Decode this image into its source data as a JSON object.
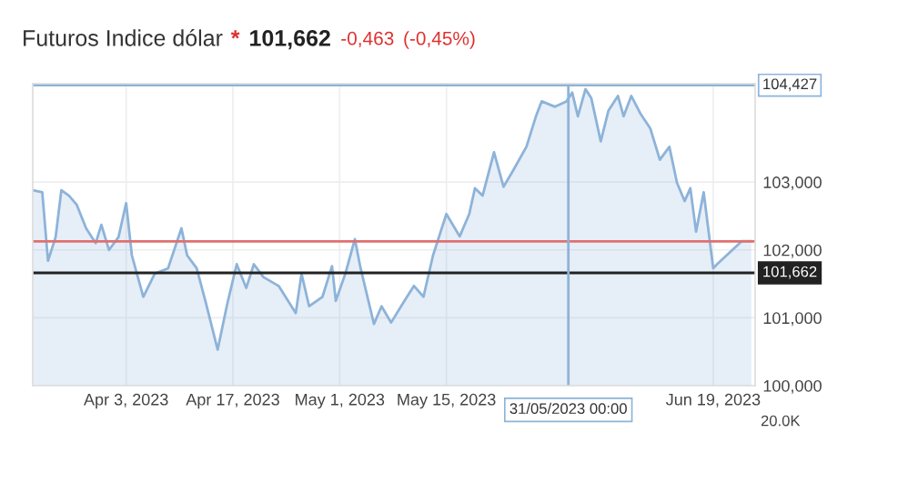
{
  "chart_data": {
    "type": "area",
    "title": "Futuros Indice dólar",
    "annotations": [
      "*",
      "101,662",
      "-0,463",
      "(-0,45%)",
      "20.0K"
    ],
    "x": [
      "2023-03-21T18:00",
      "2023-03-23T00:00",
      "2023-03-23T18:00",
      "2023-03-24T18:00",
      "2023-03-25T12:00",
      "2023-03-26T12:00",
      "2023-03-27T12:00",
      "2023-03-28T18:00",
      "2023-03-30T00:00",
      "2023-03-30T18:00",
      "2023-03-31T18:00",
      "2023-04-02T00:00",
      "2023-04-03T00:00",
      "2023-04-03T18:00",
      "2023-04-05T06:00",
      "2023-04-06T18:00",
      "2023-04-08T12:00",
      "2023-04-10T06:00",
      "2023-04-11T00:00",
      "2023-04-12T06:00",
      "2023-04-13T12:00",
      "2023-04-15T00:00",
      "2023-04-16T06:00",
      "2023-04-17T12:00",
      "2023-04-18T18:00",
      "2023-04-19T18:00",
      "2023-04-21T00:00",
      "2023-04-23T00:00",
      "2023-04-25T06:00",
      "2023-04-26T00:00",
      "2023-04-27T00:00",
      "2023-04-28T18:00",
      "2023-04-30T00:00",
      "2023-04-30T12:00",
      "2023-05-01T18:00",
      "2023-05-03T00:00",
      "2023-05-03T18:00",
      "2023-05-05T12:00",
      "2023-05-06T12:00",
      "2023-05-07T18:00",
      "2023-05-09T12:00",
      "2023-05-10T18:00",
      "2023-05-12T00:00",
      "2023-05-13T06:00",
      "2023-05-15T00:00",
      "2023-05-16T18:00",
      "2023-05-18T00:00",
      "2023-05-18T18:00",
      "2023-05-19T18:00",
      "2023-05-21T06:00",
      "2023-05-22T12:00",
      "2023-05-23T18:00",
      "2023-05-25T12:00",
      "2023-05-26T18:00",
      "2023-05-27T12:00",
      "2023-05-29T06:00",
      "2023-05-30T18:00",
      "2023-05-31T12:00",
      "2023-06-01T06:00",
      "2023-06-02T06:00",
      "2023-06-03T00:00",
      "2023-06-04T06:00",
      "2023-06-05T06:00",
      "2023-06-06T12:00",
      "2023-06-07T06:00",
      "2023-06-08T06:00",
      "2023-06-09T12:00",
      "2023-06-10T18:00",
      "2023-06-12T00:00",
      "2023-06-13T06:00",
      "2023-06-14T06:00",
      "2023-06-15T06:00",
      "2023-06-16T00:00",
      "2023-06-16T18:00",
      "2023-06-17T18:00",
      "2023-06-19T00:00",
      "2023-06-19T12:00",
      "2023-06-20T18:00",
      "2023-06-22T00:00",
      "2023-06-22T18:00",
      "2023-06-24T00:00"
    ],
    "series": [
      {
        "color": "#8db3d9",
        "values": [
          102.88,
          102.85,
          101.84,
          102.19,
          102.88,
          102.8,
          102.67,
          102.32,
          102.1,
          102.37,
          102.0,
          102.19,
          102.69,
          101.92,
          101.31,
          101.65,
          101.73,
          102.32,
          101.92,
          101.73,
          101.2,
          100.53,
          101.2,
          101.79,
          101.44,
          101.79,
          101.6,
          101.47,
          101.07,
          101.65,
          101.17,
          101.31,
          101.76,
          101.25,
          101.65,
          102.16,
          101.73,
          100.91,
          101.17,
          100.93,
          101.25,
          101.47,
          101.31,
          101.92,
          102.53,
          102.2,
          102.53,
          102.91,
          102.8,
          103.44,
          102.93,
          103.17,
          103.52,
          103.97,
          104.19,
          104.11,
          104.19,
          104.32,
          103.97,
          104.37,
          104.24,
          103.6,
          104.05,
          104.27,
          103.97,
          104.27,
          104.0,
          103.79,
          103.33,
          103.52,
          102.99,
          102.72,
          102.91,
          102.27,
          102.85,
          101.73,
          101.79,
          101.92,
          102.05,
          102.13,
          102.13
        ]
      }
    ],
    "xlim": [
      "2023-03-21T18:00",
      "2023-06-24T12:00"
    ],
    "xticks": [
      {
        "value": "2023-04-03",
        "label": "Apr 3, 2023"
      },
      {
        "value": "2023-04-17",
        "label": "Apr 17, 2023"
      },
      {
        "value": "2023-05-01",
        "label": "May 1, 2023"
      },
      {
        "value": "2023-05-15",
        "label": "May 15, 2023"
      },
      {
        "value": "2023-06-19",
        "label": "Jun 19, 2023"
      }
    ],
    "ylim": [
      100.0,
      104.45
    ],
    "yticks": [
      {
        "value": 100,
        "label": "100,000"
      },
      {
        "value": 101,
        "label": "101,000"
      },
      {
        "value": 102,
        "label": "102,000"
      },
      {
        "value": 103,
        "label": "103,000"
      }
    ],
    "ref_lines": [
      {
        "axis": "y",
        "value": 104.427,
        "label": "104,427",
        "color": "#8db3d9"
      },
      {
        "axis": "y",
        "value": 102.125,
        "color": "#e07070"
      },
      {
        "axis": "y",
        "value": 101.662,
        "label": "101,662",
        "color": "#222222"
      },
      {
        "axis": "x",
        "value": "2023-05-31",
        "label": "31/05/2023 00:00",
        "color": "#8db3d9"
      }
    ],
    "grid": true
  }
}
